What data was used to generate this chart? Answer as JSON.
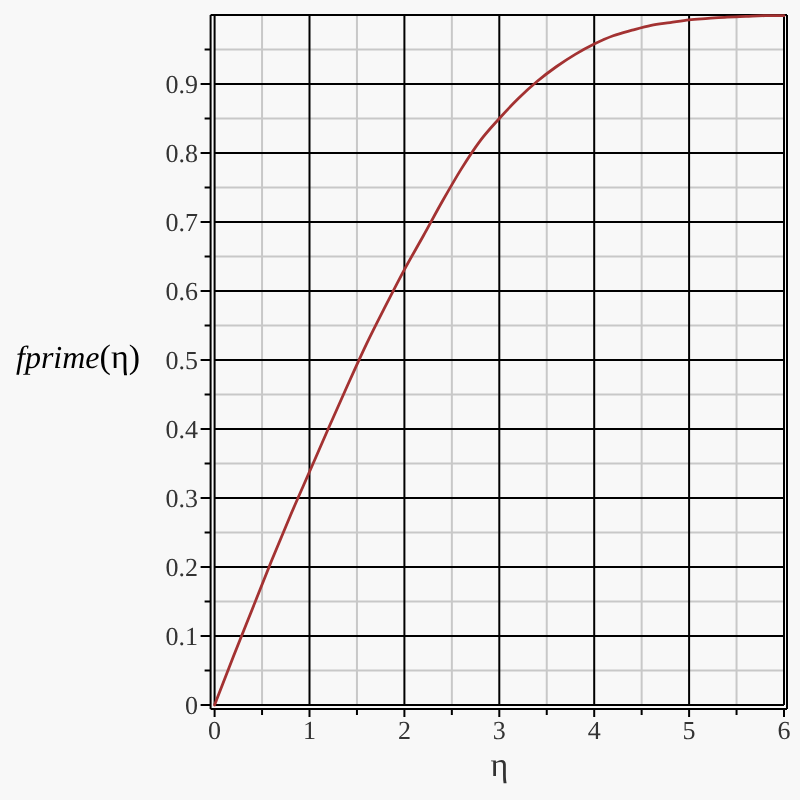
{
  "chart_data": {
    "type": "line",
    "xlabel": "η",
    "ylabel": "fprime(η)",
    "x": [
      0,
      0.2,
      0.4,
      0.6,
      0.8,
      1.0,
      1.2,
      1.4,
      1.6,
      1.8,
      2.0,
      2.2,
      2.4,
      2.6,
      2.8,
      3.0,
      3.2,
      3.4,
      3.6,
      3.8,
      4.0,
      4.2,
      4.4,
      4.6,
      4.8,
      5.0,
      5.2,
      5.4,
      5.6,
      5.8,
      6.0
    ],
    "series": [
      {
        "color": "#a33232",
        "values": [
          0,
          0.071,
          0.14,
          0.209,
          0.275,
          0.338,
          0.401,
          0.463,
          0.523,
          0.578,
          0.631,
          0.68,
          0.73,
          0.777,
          0.818,
          0.85,
          0.879,
          0.904,
          0.925,
          0.943,
          0.958,
          0.97,
          0.978,
          0.985,
          0.989,
          0.993,
          0.995,
          0.997,
          0.998,
          0.999,
          0.999
        ]
      }
    ],
    "xlim": [
      0,
      6
    ],
    "ylim": [
      0,
      1
    ],
    "xticks": [
      0,
      {
        "value": 0.5,
        "label": null
      },
      1,
      {
        "value": 1.5,
        "label": null
      },
      2,
      {
        "value": 2.5,
        "label": null
      },
      3,
      {
        "value": 3.5,
        "label": null
      },
      4,
      {
        "value": 4.5,
        "label": null
      },
      5,
      {
        "value": 5.5,
        "label": null
      },
      6
    ],
    "yticks": [
      0,
      {
        "value": 0.05,
        "label": null
      },
      0.1,
      {
        "value": 0.15,
        "label": null
      },
      0.2,
      {
        "value": 0.25,
        "label": null
      },
      0.3,
      {
        "value": 0.35,
        "label": null
      },
      0.4,
      {
        "value": 0.45,
        "label": null
      },
      0.5,
      {
        "value": 0.55,
        "label": null
      },
      0.6,
      {
        "value": 0.65,
        "label": null
      },
      0.7,
      {
        "value": 0.75,
        "label": null
      },
      0.8,
      {
        "value": 0.85,
        "label": null
      },
      0.9,
      {
        "value": 0.95,
        "label": null
      }
    ],
    "grid": true
  }
}
